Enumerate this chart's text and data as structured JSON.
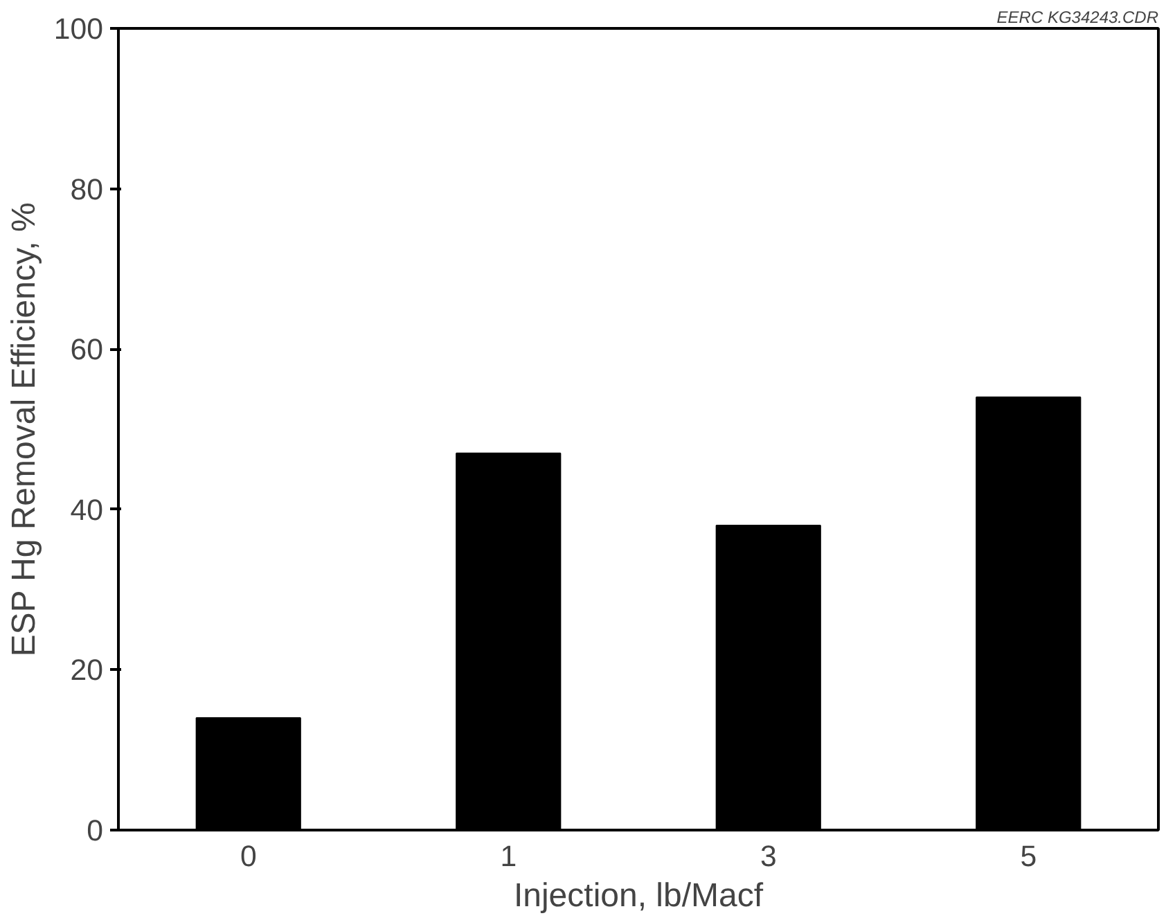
{
  "chart_data": {
    "type": "bar",
    "xlabel": "Injection, lb/Macf",
    "ylabel": "ESP Hg Removal Efficiency, %",
    "annotations": [
      "EERC KG34243.CDR"
    ],
    "categories": [
      "0",
      "1",
      "3",
      "5"
    ],
    "values": [
      14,
      47,
      38,
      54
    ],
    "color": "#000000",
    "ylim": [
      0,
      100
    ],
    "yticks": [
      0,
      20,
      40,
      60,
      80,
      100
    ],
    "grid": false
  }
}
